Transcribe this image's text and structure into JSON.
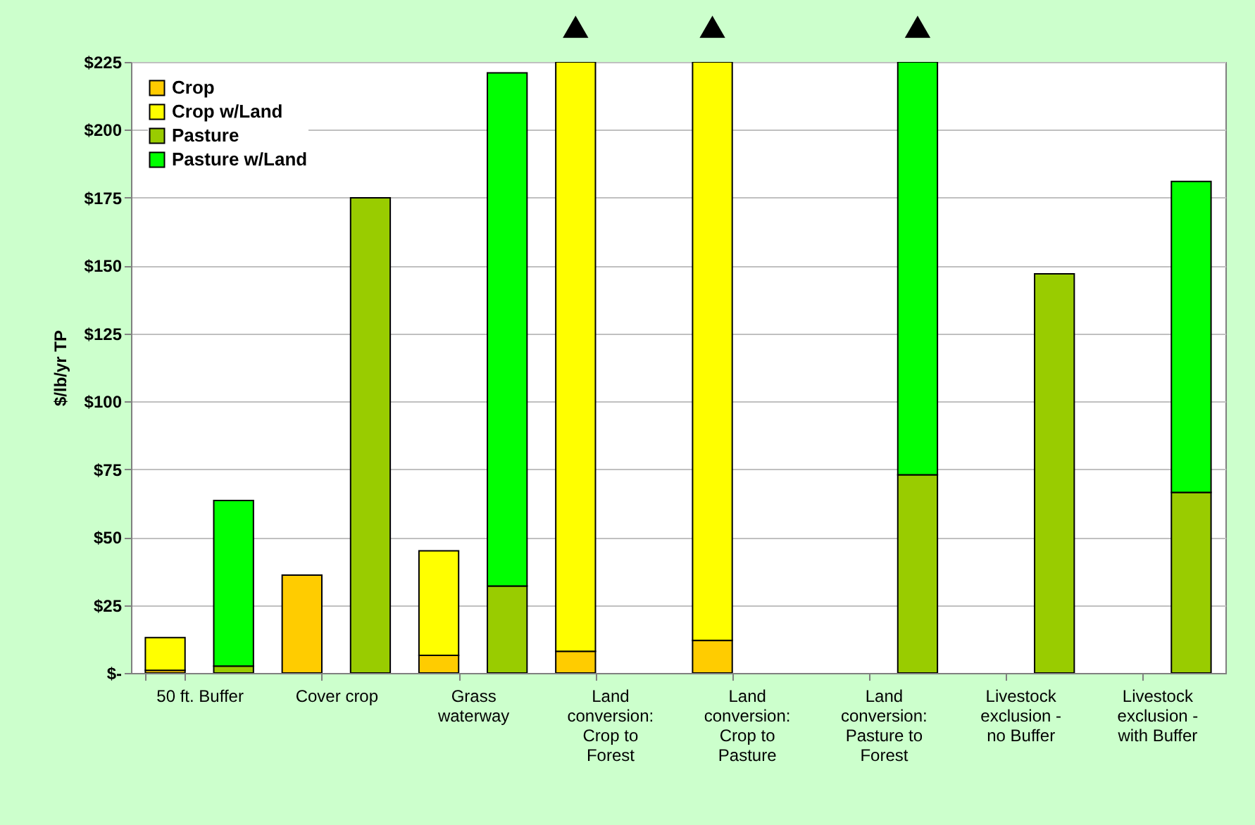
{
  "chart_data": {
    "type": "bar",
    "stacked": true,
    "ylabel": "$/lb/yr TP",
    "categories": [
      "50 ft. Buffer",
      null,
      "Cover crop",
      null,
      "Grass\nwaterway",
      null,
      "Land\nconversion:\nCrop to\nForest",
      null,
      "Land\nconversion:\nCrop to\nPasture",
      null,
      "Land\nconversion:\nPasture to\nForest",
      null,
      "Livestock\nexclusion -\nno Buffer",
      null,
      "Livestock\nexclusion -\nwith Buffer",
      null
    ],
    "series": [
      {
        "name": "Crop",
        "color": "#ffcc00",
        "values": [
          1,
          null,
          36,
          null,
          6.5,
          null,
          8,
          null,
          12,
          null,
          null,
          null,
          null,
          null,
          null,
          null
        ]
      },
      {
        "name": "Crop w/Land",
        "color": "#ffff00",
        "values": [
          12,
          null,
          null,
          null,
          38.5,
          null,
          217,
          null,
          213,
          null,
          null,
          null,
          null,
          null,
          null,
          null
        ]
      },
      {
        "name": "Pasture",
        "color": "#99cc00",
        "values": [
          null,
          2.5,
          null,
          175,
          null,
          32,
          null,
          null,
          null,
          null,
          null,
          73,
          null,
          147,
          null,
          66.5
        ]
      },
      {
        "name": "Pasture w/Land",
        "color": "#00ff00",
        "values": [
          null,
          61,
          null,
          null,
          null,
          189,
          null,
          null,
          null,
          null,
          null,
          152,
          null,
          null,
          null,
          114.5
        ]
      }
    ],
    "ylim": [
      0,
      225
    ],
    "yticks": [
      {
        "value": 0,
        "label": "$-"
      },
      {
        "value": 25,
        "label": "$25"
      },
      {
        "value": 50,
        "label": "$50"
      },
      {
        "value": 75,
        "label": "$75"
      },
      {
        "value": 100,
        "label": "$100"
      },
      {
        "value": 125,
        "label": "$125"
      },
      {
        "value": 150,
        "label": "$150"
      },
      {
        "value": 175,
        "label": "$175"
      },
      {
        "value": 200,
        "label": "$200"
      },
      {
        "value": 225,
        "label": "$225"
      }
    ],
    "grid": "y",
    "legend": "top left"
  }
}
